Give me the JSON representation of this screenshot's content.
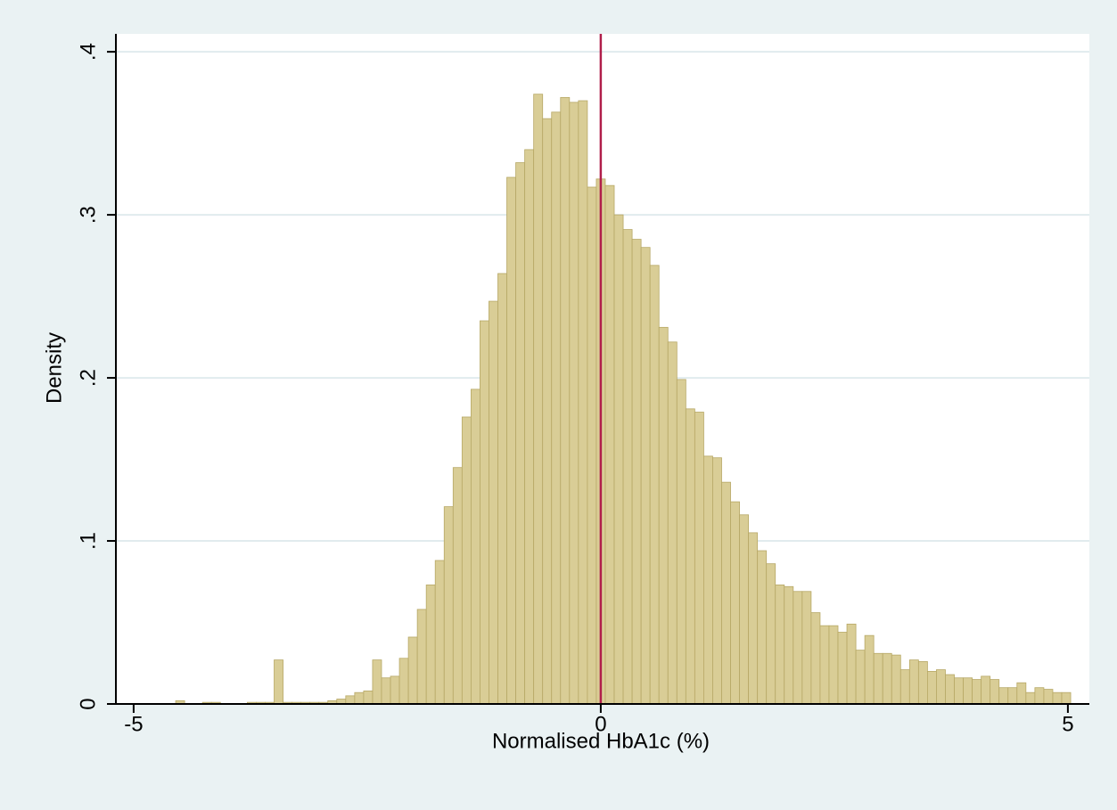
{
  "chart_data": {
    "type": "histogram",
    "x_label": "Normalised HbA1c (%)",
    "y_label": "Density",
    "bins": [
      -4.55,
      -4.4542,
      -4.3584,
      -4.2626,
      -4.1668,
      -4.071,
      -3.9752,
      -3.8794,
      -3.7836,
      -3.6878,
      -3.592,
      -3.4962,
      -3.4004,
      -3.3046,
      -3.2088,
      -3.113,
      -3.0172,
      -2.9214,
      -2.8256,
      -2.7298,
      -2.634,
      -2.5382,
      -2.4424,
      -2.3466,
      -2.2508,
      -2.155,
      -2.0592,
      -1.9634,
      -1.8676,
      -1.7718,
      -1.676,
      -1.5802,
      -1.4844,
      -1.3886,
      -1.2928,
      -1.197,
      -1.1012,
      -1.0054,
      -0.9096,
      -0.8138,
      -0.718,
      -0.6222,
      -0.5264,
      -0.4306,
      -0.3348,
      -0.239,
      -0.1432,
      -0.0474,
      0.0484,
      0.1442,
      0.24,
      0.3358,
      0.4316,
      0.5274,
      0.6232,
      0.719,
      0.8148,
      0.9106,
      1.0064,
      1.1022,
      1.198,
      1.2938,
      1.3896,
      1.4854,
      1.5812,
      1.677,
      1.7728,
      1.8686,
      1.9644,
      2.0602,
      2.156,
      2.2518,
      2.3476,
      2.4434,
      2.5392,
      2.635,
      2.7308,
      2.8266,
      2.9224,
      3.0182,
      3.114,
      3.2098,
      3.3056,
      3.4014,
      3.4972,
      3.593,
      3.6888,
      3.7846,
      3.8804,
      3.9762,
      4.072,
      4.1678,
      4.2636,
      4.3594,
      4.4552,
      4.551,
      4.6468,
      4.7426,
      4.8384,
      4.9342,
      5.03
    ],
    "counts": [
      0.002,
      0,
      0,
      0.001,
      0.001,
      0,
      0,
      0,
      0.001,
      0.001,
      0.001,
      0.027,
      0.001,
      0.001,
      0.001,
      0.001,
      0.001,
      0.002,
      0.003,
      0.005,
      0.007,
      0.008,
      0.027,
      0.016,
      0.017,
      0.028,
      0.041,
      0.058,
      0.073,
      0.088,
      0.121,
      0.145,
      0.176,
      0.193,
      0.235,
      0.247,
      0.264,
      0.323,
      0.332,
      0.34,
      0.374,
      0.359,
      0.363,
      0.372,
      0.369,
      0.37,
      0.317,
      0.322,
      0.318,
      0.3,
      0.291,
      0.285,
      0.28,
      0.269,
      0.231,
      0.222,
      0.199,
      0.181,
      0.179,
      0.152,
      0.151,
      0.136,
      0.124,
      0.116,
      0.105,
      0.094,
      0.086,
      0.073,
      0.072,
      0.069,
      0.069,
      0.056,
      0.048,
      0.048,
      0.044,
      0.049,
      0.033,
      0.042,
      0.031,
      0.031,
      0.03,
      0.021,
      0.027,
      0.026,
      0.02,
      0.021,
      0.018,
      0.016,
      0.016,
      0.015,
      0.017,
      0.015,
      0.01,
      0.01,
      0.013,
      0.007,
      0.01,
      0.009,
      0.007,
      0.007
    ],
    "color": "#d9cd96",
    "edge_color": "#b7a866",
    "vline": 0,
    "vline_color": "#b01e4a",
    "xlim": [
      -5.19,
      5.23
    ],
    "ylim": [
      0,
      0.411
    ],
    "xticks": [
      -5,
      0,
      5
    ],
    "yticks": [
      0,
      {
        "value": 0.1,
        "label": ".1"
      },
      {
        "value": 0.2,
        "label": ".2"
      },
      {
        "value": 0.3,
        "label": ".3"
      },
      {
        "value": 0.4,
        "label": ".4"
      }
    ],
    "grid": true
  }
}
